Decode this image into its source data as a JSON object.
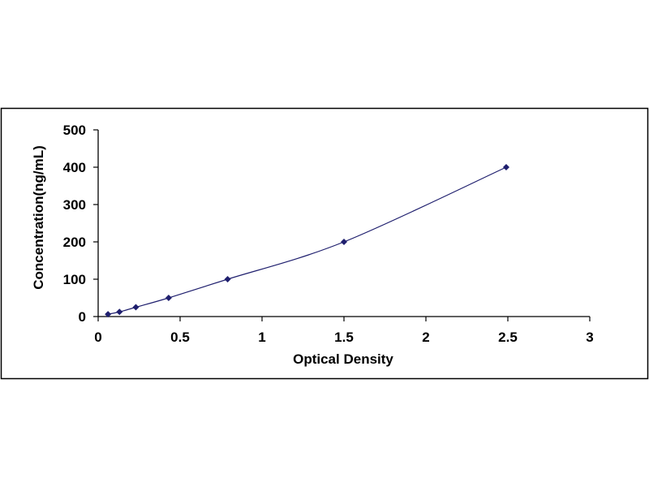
{
  "chart_data": {
    "type": "scatter",
    "title": "",
    "xlabel": "Optical Density",
    "ylabel": "Concentration(ng/mL)",
    "xlim": [
      0,
      3
    ],
    "ylim": [
      0,
      500
    ],
    "xticks": [
      0,
      0.5,
      1,
      1.5,
      2,
      2.5,
      3
    ],
    "yticks": [
      0,
      100,
      200,
      300,
      400,
      500
    ],
    "xtick_labels": [
      "0",
      "0.5",
      "1",
      "1.5",
      "2",
      "2.5",
      "3"
    ],
    "ytick_labels": [
      "0",
      "100",
      "200",
      "300",
      "400",
      "500"
    ],
    "grid": false,
    "legend": "none",
    "trendline": "smooth",
    "series": [
      {
        "x": [
          0.06,
          0.13,
          0.23,
          0.43,
          0.79,
          1.5,
          2.49
        ],
        "y": [
          6.25,
          12.5,
          25,
          50,
          100,
          200,
          400
        ],
        "color": "#1F1F6E"
      }
    ]
  }
}
